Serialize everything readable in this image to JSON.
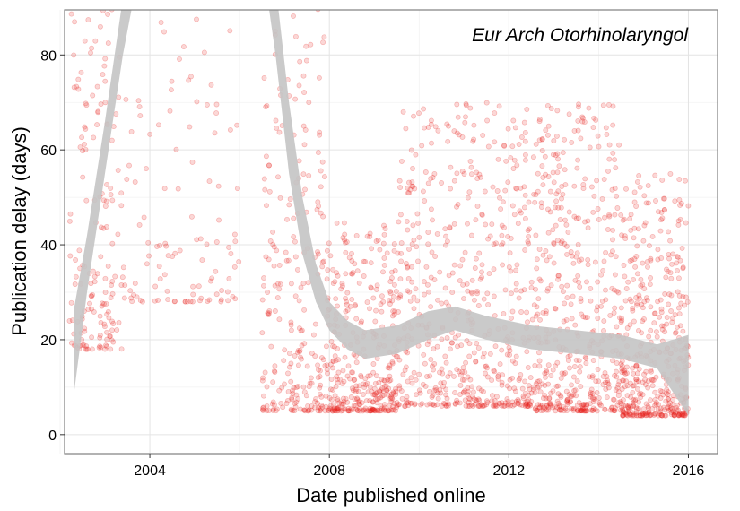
{
  "chart_data": {
    "type": "scatter",
    "title": "",
    "annotation": "Eur Arch Otorhinolaryngol",
    "xlabel": "Date published online",
    "ylabel": "Publication delay (days)",
    "xlim": [
      2002.1,
      2016.65
    ],
    "ylim": [
      -4,
      89.5
    ],
    "x_ticks": [
      2004,
      2008,
      2012,
      2016
    ],
    "x_tick_labels": [
      "2004",
      "2008",
      "2012",
      "2016"
    ],
    "y_ticks": [
      0,
      20,
      40,
      60,
      80
    ],
    "y_tick_labels": [
      "0",
      "20",
      "40",
      "60",
      "80"
    ],
    "grid": true,
    "point_color": "#e8201d",
    "point_opacity": 0.18,
    "smooth_band_color": "#c4c4c4",
    "scatter_clusters": [
      {
        "x": [
          2002.2,
          2003.4
        ],
        "y": [
          18,
          90
        ],
        "n": 160
      },
      {
        "x": [
          2003.4,
          2006.0
        ],
        "y": [
          28,
          90
        ],
        "n": 110
      },
      {
        "x": [
          2006.5,
          2007.9
        ],
        "y": [
          5,
          90
        ],
        "n": 230
      },
      {
        "x": [
          2007.9,
          2009.5
        ],
        "y": [
          5,
          45
        ],
        "n": 360
      },
      {
        "x": [
          2009.5,
          2012.5
        ],
        "y": [
          6,
          70
        ],
        "n": 560
      },
      {
        "x": [
          2012.5,
          2014.5
        ],
        "y": [
          5,
          70
        ],
        "n": 480
      },
      {
        "x": [
          2014.5,
          2016.0
        ],
        "y": [
          4,
          55
        ],
        "n": 440
      }
    ],
    "smooth_trend": {
      "x": [
        2002.3,
        2002.6,
        2003.0,
        2003.4,
        2003.8,
        2006.5,
        2006.8,
        2007.1,
        2007.4,
        2007.7,
        2008.0,
        2008.4,
        2008.8,
        2009.5,
        2010.2,
        2010.8,
        2011.5,
        2012.5,
        2013.5,
        2014.5,
        2015.3,
        2016.0
      ],
      "lower": [
        8,
        30,
        55,
        80,
        100,
        100,
        80,
        55,
        38,
        28,
        22,
        18,
        16,
        17,
        20,
        22,
        20,
        18,
        17,
        16,
        14,
        4
      ],
      "upper": [
        26,
        42,
        66,
        92,
        108,
        108,
        95,
        70,
        50,
        36,
        28,
        24,
        22,
        23,
        26,
        27,
        25,
        23,
        22,
        21,
        19,
        21
      ]
    }
  }
}
